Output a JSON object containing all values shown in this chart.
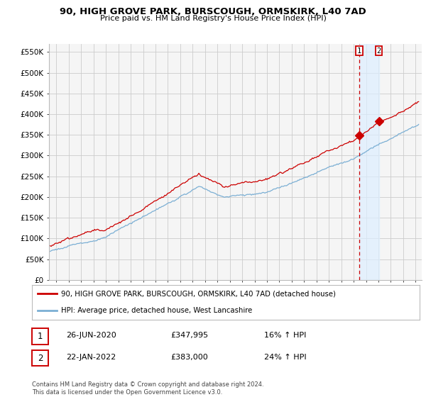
{
  "title": "90, HIGH GROVE PARK, BURSCOUGH, ORMSKIRK, L40 7AD",
  "subtitle": "Price paid vs. HM Land Registry's House Price Index (HPI)",
  "ylabel_ticks": [
    "£0",
    "£50K",
    "£100K",
    "£150K",
    "£200K",
    "£250K",
    "£300K",
    "£350K",
    "£400K",
    "£450K",
    "£500K",
    "£550K"
  ],
  "ytick_values": [
    0,
    50000,
    100000,
    150000,
    200000,
    250000,
    300000,
    350000,
    400000,
    450000,
    500000,
    550000
  ],
  "ylim": [
    0,
    570000
  ],
  "xlim_start": 1995.4,
  "xlim_end": 2025.5,
  "hpi_color": "#7bafd4",
  "price_color": "#cc0000",
  "vline_color": "#cc0000",
  "shade_color": "#ddeeff",
  "marker1_y": 347995,
  "marker2_y": 383000,
  "legend_line1": "90, HIGH GROVE PARK, BURSCOUGH, ORMSKIRK, L40 7AD (detached house)",
  "legend_line2": "HPI: Average price, detached house, West Lancashire",
  "ann1_date": "26-JUN-2020",
  "ann1_price": "£347,995",
  "ann1_hpi": "16% ↑ HPI",
  "ann2_date": "22-JAN-2022",
  "ann2_price": "£383,000",
  "ann2_hpi": "24% ↑ HPI",
  "footer": "Contains HM Land Registry data © Crown copyright and database right 2024.\nThis data is licensed under the Open Government Licence v3.0.",
  "bg_color": "#ffffff",
  "grid_color": "#cccccc",
  "plot_bg": "#f5f5f5"
}
